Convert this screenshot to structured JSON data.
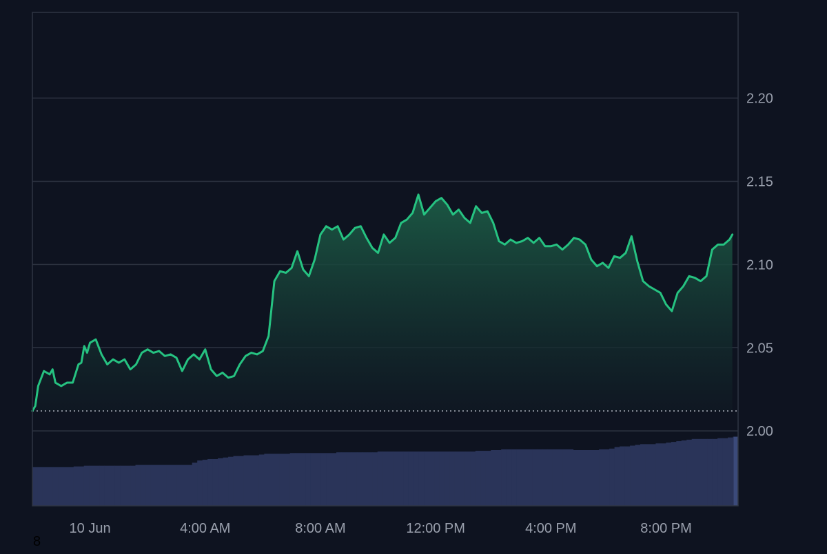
{
  "colors": {
    "background": "#0e1320",
    "line": "#26c281",
    "area_top": "#1c5c46",
    "area_bottom": "#101a24",
    "grid": "#2e3442",
    "axis_text": "#9aa0ad",
    "volume": "#2a3459",
    "volume_highlight": "#3b4a7a",
    "baseline": "#b8bcc6"
  },
  "corner_label": "8",
  "chart_data": {
    "type": "area",
    "title": "",
    "xlabel": "",
    "ylabel": "",
    "y_axis_position": "right",
    "grid": true,
    "x_range": [
      0,
      24.5
    ],
    "ylim": [
      1.955,
      2.2515
    ],
    "yticks": [
      2.0,
      2.05,
      2.1,
      2.15,
      2.2
    ],
    "ytick_labels": [
      "2.00",
      "2.05",
      "2.10",
      "2.15",
      "2.20"
    ],
    "xticks": [
      2,
      6,
      10,
      14,
      18,
      22
    ],
    "xtick_labels": [
      "10 Jun",
      "4:00 AM",
      "8:00 AM",
      "12:00 PM",
      "4:00 PM",
      "8:00 PM"
    ],
    "baseline_price": 2.012,
    "series": [
      {
        "x": [
          0.0,
          0.1,
          0.2,
          0.4,
          0.6,
          0.7,
          0.8,
          1.0,
          1.2,
          1.4,
          1.6,
          1.7,
          1.8,
          1.9,
          2.0,
          2.2,
          2.4,
          2.6,
          2.8,
          3.0,
          3.2,
          3.4,
          3.6,
          3.8,
          4.0,
          4.2,
          4.4,
          4.6,
          4.8,
          5.0,
          5.2,
          5.4,
          5.6,
          5.8,
          6.0,
          6.2,
          6.4,
          6.6,
          6.8,
          7.0,
          7.2,
          7.4,
          7.6,
          7.8,
          8.0,
          8.2,
          8.4,
          8.6,
          8.8,
          9.0,
          9.2,
          9.4,
          9.6,
          9.8,
          10.0,
          10.2,
          10.4,
          10.6,
          10.8,
          11.0,
          11.2,
          11.4,
          11.6,
          11.8,
          12.0,
          12.2,
          12.4,
          12.6,
          12.8,
          13.0,
          13.2,
          13.4,
          13.6,
          13.8,
          14.0,
          14.2,
          14.4,
          14.6,
          14.8,
          15.0,
          15.2,
          15.4,
          15.6,
          15.8,
          16.0,
          16.2,
          16.4,
          16.6,
          16.8,
          17.0,
          17.2,
          17.4,
          17.6,
          17.8,
          18.0,
          18.2,
          18.4,
          18.6,
          18.8,
          19.0,
          19.2,
          19.4,
          19.6,
          19.8,
          20.0,
          20.2,
          20.4,
          20.6,
          20.8,
          21.0,
          21.2,
          21.4,
          21.6,
          21.8,
          22.0,
          22.2,
          22.4,
          22.6,
          22.8,
          23.0,
          23.2,
          23.4,
          23.6,
          23.8,
          24.0,
          24.2,
          24.3
        ],
        "y": [
          2.012,
          2.015,
          2.027,
          2.036,
          2.034,
          2.037,
          2.029,
          2.027,
          2.029,
          2.029,
          2.04,
          2.041,
          2.051,
          2.047,
          2.053,
          2.055,
          2.046,
          2.04,
          2.043,
          2.041,
          2.043,
          2.037,
          2.04,
          2.047,
          2.049,
          2.047,
          2.048,
          2.045,
          2.046,
          2.044,
          2.036,
          2.043,
          2.046,
          2.043,
          2.049,
          2.037,
          2.033,
          2.035,
          2.032,
          2.033,
          2.04,
          2.045,
          2.047,
          2.046,
          2.048,
          2.057,
          2.09,
          2.096,
          2.095,
          2.098,
          2.108,
          2.097,
          2.093,
          2.103,
          2.118,
          2.123,
          2.121,
          2.123,
          2.115,
          2.118,
          2.122,
          2.123,
          2.116,
          2.11,
          2.107,
          2.118,
          2.113,
          2.116,
          2.125,
          2.127,
          2.131,
          2.142,
          2.13,
          2.134,
          2.138,
          2.14,
          2.136,
          2.13,
          2.133,
          2.128,
          2.125,
          2.135,
          2.131,
          2.132,
          2.125,
          2.114,
          2.112,
          2.115,
          2.113,
          2.114,
          2.116,
          2.113,
          2.116,
          2.111,
          2.111,
          2.112,
          2.109,
          2.112,
          2.116,
          2.115,
          2.112,
          2.103,
          2.099,
          2.101,
          2.098,
          2.105,
          2.104,
          2.107,
          2.117,
          2.102,
          2.09,
          2.087,
          2.085,
          2.083,
          2.076,
          2.072,
          2.083,
          2.087,
          2.093,
          2.092,
          2.09,
          2.093,
          2.109,
          2.112,
          2.112,
          2.115,
          2.118
        ]
      }
    ],
    "volume": {
      "label": "",
      "relative_height_fraction": [
        0.52,
        0.52,
        0.52,
        0.52,
        0.52,
        0.52,
        0.52,
        0.52,
        0.53,
        0.53,
        0.54,
        0.54,
        0.54,
        0.54,
        0.54,
        0.54,
        0.54,
        0.54,
        0.54,
        0.54,
        0.55,
        0.55,
        0.55,
        0.55,
        0.55,
        0.55,
        0.55,
        0.55,
        0.55,
        0.55,
        0.55,
        0.58,
        0.61,
        0.62,
        0.63,
        0.63,
        0.64,
        0.65,
        0.66,
        0.67,
        0.67,
        0.68,
        0.68,
        0.68,
        0.69,
        0.7,
        0.7,
        0.7,
        0.7,
        0.7,
        0.71,
        0.71,
        0.71,
        0.71,
        0.71,
        0.71,
        0.71,
        0.71,
        0.71,
        0.72,
        0.72,
        0.72,
        0.72,
        0.72,
        0.72,
        0.72,
        0.72,
        0.73,
        0.73,
        0.73,
        0.73,
        0.73,
        0.73,
        0.73,
        0.73,
        0.73,
        0.73,
        0.73,
        0.73,
        0.73,
        0.73,
        0.73,
        0.73,
        0.73,
        0.73,
        0.73,
        0.74,
        0.74,
        0.74,
        0.75,
        0.75,
        0.76,
        0.76,
        0.76,
        0.76,
        0.76,
        0.76,
        0.76,
        0.76,
        0.76,
        0.76,
        0.76,
        0.76,
        0.76,
        0.76,
        0.75,
        0.75,
        0.75,
        0.75,
        0.75,
        0.76,
        0.76,
        0.77,
        0.79,
        0.8,
        0.8,
        0.81,
        0.82,
        0.83,
        0.83,
        0.83,
        0.84,
        0.84,
        0.85,
        0.86,
        0.87,
        0.88,
        0.89,
        0.9,
        0.9,
        0.9,
        0.9,
        0.9,
        0.91,
        0.91,
        0.92,
        0.93
      ]
    }
  }
}
